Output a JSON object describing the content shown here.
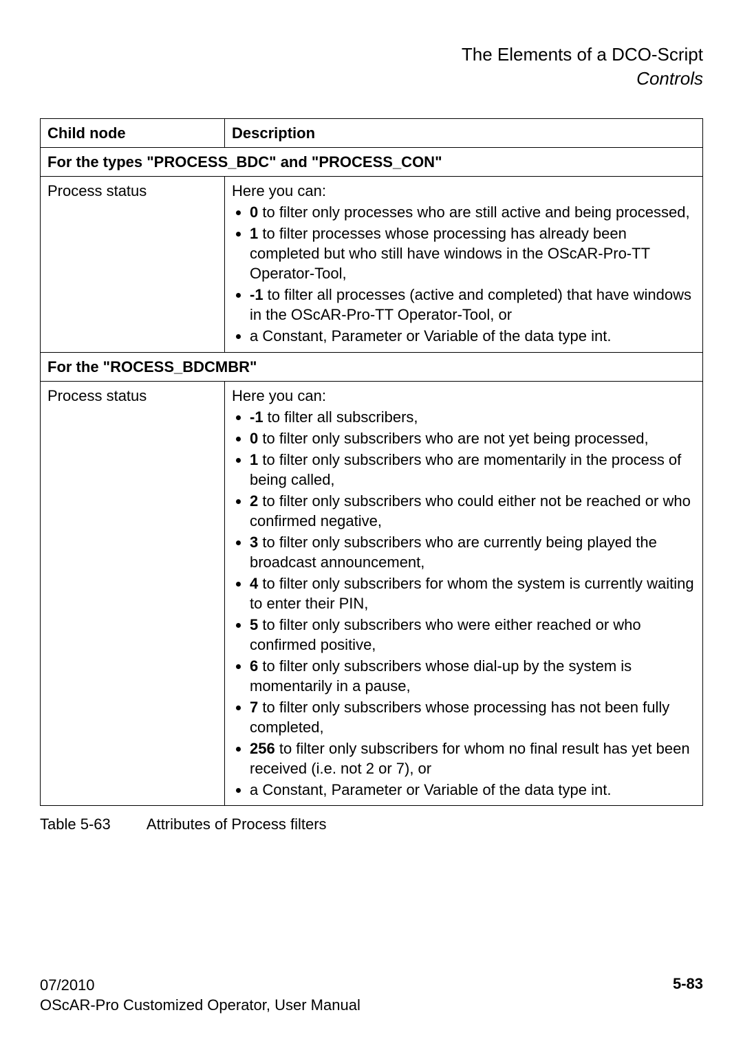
{
  "header": {
    "title": "The Elements of a DCO-Script",
    "subtitle": "Controls"
  },
  "table": {
    "col1_header": "Child node",
    "col2_header": "Description",
    "section1_title": "For the types \"PROCESS_BDC\" and \"PROCESS_CON\"",
    "row1": {
      "name": "Process status",
      "intro": "Here you can:",
      "items": [
        {
          "bold": "0",
          "text": " to filter only processes who are still active and being processed,"
        },
        {
          "bold": "1",
          "text": " to filter processes whose processing has already been completed but who still have windows in the OScAR-Pro-TT Operator-Tool,"
        },
        {
          "bold": "-1",
          "text": " to filter all processes (active and completed) that have windows in the OScAR-Pro-TT Operator-Tool, or"
        },
        {
          "bold": "",
          "text": "a Constant, Parameter or Variable of the data type int."
        }
      ]
    },
    "section2_title": "For the \"ROCESS_BDCMBR\"",
    "row2": {
      "name": "Process status",
      "intro": "Here you can:",
      "items": [
        {
          "bold": "-1",
          "text": " to filter all subscribers,"
        },
        {
          "bold": "0",
          "text": " to filter only subscribers who are not yet being processed,"
        },
        {
          "bold": "1",
          "text": " to filter only subscribers who are momentarily in the process of being called,"
        },
        {
          "bold": "2",
          "text": " to filter only subscribers who could either not be reached or who confirmed negative,"
        },
        {
          "bold": "3",
          "text": " to filter only subscribers who are currently being played the broadcast announcement,"
        },
        {
          "bold": "4",
          "text": " to filter only subscribers for whom the system is currently waiting to enter their PIN,"
        },
        {
          "bold": "5",
          "text": " to filter only subscribers who were either reached or who confirmed positive,"
        },
        {
          "bold": "6",
          "text": " to filter only subscribers whose dial-up by the system is momentarily in a pause,"
        },
        {
          "bold": "7",
          "text": " to filter only subscribers whose processing has not been fully completed,"
        },
        {
          "bold": "256",
          "text": " to filter only subscribers for whom no final result has yet been received (i.e. not 2 or 7), or"
        },
        {
          "bold": "",
          "text": "a Constant, Parameter or Variable of the data type int."
        }
      ]
    }
  },
  "caption": {
    "label": "Table 5-63",
    "text": "Attributes of Process filters"
  },
  "footer": {
    "line1": "07/2010",
    "line2": "OScAR-Pro Customized Operator, User Manual",
    "pgnum": "5-83"
  }
}
